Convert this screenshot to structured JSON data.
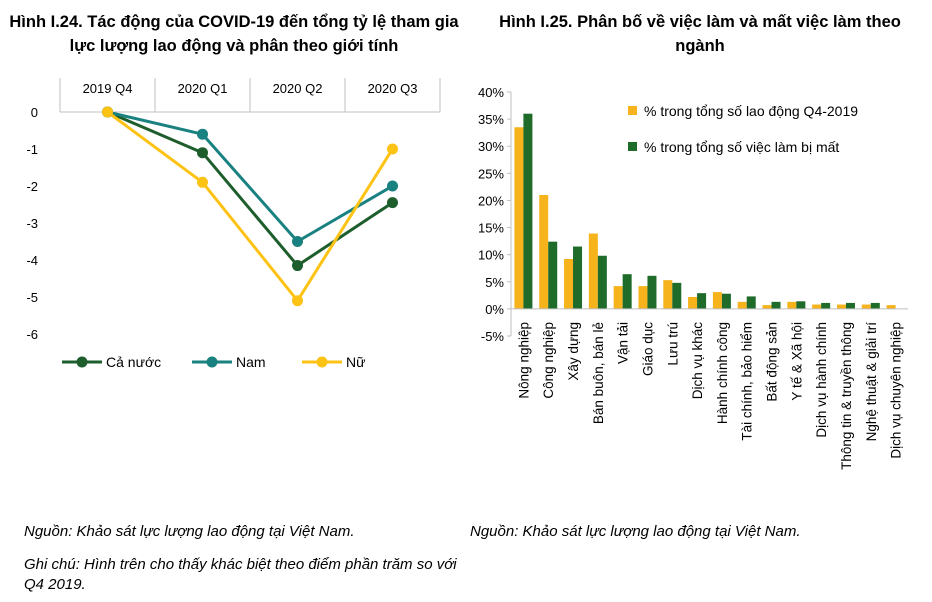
{
  "left_title": "Hình I.24. Tác động của COVID-19 đến tổng tỷ lệ tham gia lực lượng lao động và phân theo giới tính",
  "right_title": "Hình I.25. Phân bố về việc làm và mất việc làm theo ngành",
  "left_source": "Nguồn: Khảo sát lực lượng lao động tại Việt Nam.",
  "left_note": "Ghi chú: Hình trên cho thấy khác biệt theo điểm phần trăm so với Q4 2019.",
  "right_source": "Nguồn: Khảo sát lực lượng lao động tại Việt Nam.",
  "colors": {
    "ca_nuoc": "#1e5e2d",
    "nam": "#1a8181",
    "nu": "#fcc214",
    "bar_yellow": "#f6b31c",
    "bar_green": "#1e6b2a"
  },
  "chart_data": [
    {
      "type": "line",
      "title": "Hình I.24. Tác động của COVID-19 đến tổng tỷ lệ tham gia lực lượng lao động và phân theo giới tính",
      "categories": [
        "2019 Q4",
        "2020 Q1",
        "2020 Q2",
        "2020 Q3"
      ],
      "ylim": [
        -6,
        0
      ],
      "yticks": [
        "0",
        "-1",
        "-2",
        "-3",
        "-4",
        "-5",
        "-6"
      ],
      "xaxis_position": "top",
      "legend_position": "bottom",
      "series": [
        {
          "name": "Cả nước",
          "values": [
            0,
            -1.1,
            -4.15,
            -2.45
          ]
        },
        {
          "name": "Nam",
          "values": [
            0,
            -0.6,
            -3.5,
            -2.0
          ]
        },
        {
          "name": "Nữ",
          "values": [
            0,
            -1.9,
            -5.1,
            -1.0
          ]
        }
      ]
    },
    {
      "type": "bar",
      "title": "Hình I.25. Phân bố về việc làm và mất việc làm theo ngành",
      "categories": [
        "Nông nghiệp",
        "Công nghiệp",
        "Xây dựng",
        "Bán buôn, bán lẻ",
        "Vận tải",
        "Giáo dục",
        "Lưu trú",
        "Dịch vụ khác",
        "Hành chính công",
        "Tài chính, bảo hiểm",
        "Bất động sản",
        "Y tế & Xã hội",
        "Dịch vụ hành chính",
        "Thông tin & truyền thông",
        "Nghệ thuật & giải trí",
        "Dịch vụ chuyên nghiệp"
      ],
      "ylim": [
        -5,
        40
      ],
      "yticks": [
        "40%",
        "35%",
        "30%",
        "25%",
        "20%",
        "15%",
        "10%",
        "5%",
        "0%",
        "-5%"
      ],
      "legend_position": "top-right",
      "series": [
        {
          "name": "% trong tổng số lao động Q4-2019",
          "values": [
            33.5,
            21.0,
            9.2,
            13.9,
            4.2,
            4.2,
            5.3,
            2.2,
            3.1,
            1.3,
            0.7,
            1.3,
            0.8,
            0.8,
            0.8,
            0.7
          ]
        },
        {
          "name": "% trong tổng số việc làm bị mất",
          "values": [
            36.0,
            12.4,
            11.5,
            9.8,
            6.4,
            6.1,
            4.8,
            2.9,
            2.8,
            2.3,
            1.3,
            1.4,
            1.1,
            1.1,
            1.1,
            0.0
          ]
        }
      ]
    }
  ]
}
